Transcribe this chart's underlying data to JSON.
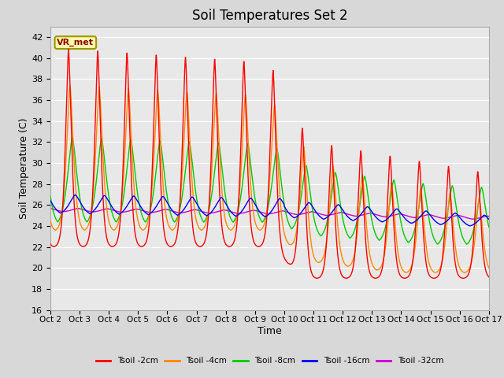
{
  "title": "Soil Temperatures Set 2",
  "xlabel": "Time",
  "ylabel": "Soil Temperature (C)",
  "ylim": [
    16,
    43
  ],
  "yticks": [
    16,
    18,
    20,
    22,
    24,
    26,
    28,
    30,
    32,
    34,
    36,
    38,
    40,
    42
  ],
  "x_labels": [
    "Oct 2",
    "Oct 3",
    "Oct 4",
    "Oct 5",
    "Oct 6",
    "Oct 7",
    "Oct 8",
    "Oct 9",
    "Oct 10",
    "Oct 11",
    "Oct 12",
    "Oct 13",
    "Oct 14",
    "Oct 15",
    "Oct 16",
    "Oct 17"
  ],
  "colors": {
    "Tsoil_2cm": "#ff0000",
    "Tsoil_4cm": "#ff8800",
    "Tsoil_8cm": "#00cc00",
    "Tsoil_16cm": "#0000ff",
    "Tsoil_32cm": "#cc00cc"
  },
  "legend_labels": [
    "Tsoil -2cm",
    "Tsoil -4cm",
    "Tsoil -8cm",
    "Tsoil -16cm",
    "Tsoil -32cm"
  ],
  "annotation_text": "VR_met",
  "background_color": "#d8d8d8",
  "axes_bg": "#e8e8e8",
  "grid_color": "#ffffff",
  "title_fontsize": 12
}
